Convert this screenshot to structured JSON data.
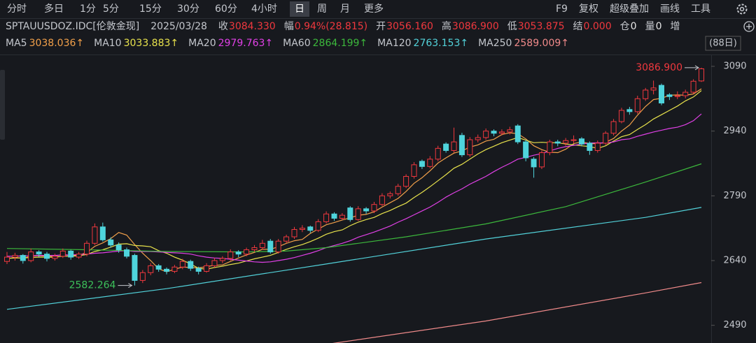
{
  "toolbar": {
    "periods": [
      "分时",
      "多日",
      "1分",
      "5分",
      "15分",
      "30分",
      "60分",
      "4小时",
      "日",
      "周",
      "月",
      "更多"
    ],
    "selected": "日",
    "tools": [
      "F9",
      "复权",
      "超级叠加",
      "画线",
      "工具"
    ]
  },
  "quote": {
    "symbol": "SPTAUUSDOZ.IDC[伦敦金现]",
    "date": "2025/03/28",
    "fields": [
      {
        "label": "收",
        "value": "3084.330",
        "color": "#f0383e"
      },
      {
        "label": "幅",
        "value": "0.94%(28.815)",
        "color": "#f0383e"
      },
      {
        "label": "开",
        "value": "3056.160",
        "color": "#f0383e"
      },
      {
        "label": "高",
        "value": "3086.900",
        "color": "#f0383e"
      },
      {
        "label": "低",
        "value": "3053.875",
        "color": "#f0383e"
      },
      {
        "label": "结",
        "value": "0.000",
        "color": "#f0383e"
      },
      {
        "label": "仓",
        "value": "0",
        "color": "#e6e6e6"
      },
      {
        "label": "量",
        "value": "0",
        "color": "#e6e6e6"
      },
      {
        "label": "增"
      }
    ]
  },
  "chart_data": {
    "type": "candlestick",
    "period_label": "(88日)",
    "up_color": "#f0383e",
    "down_color": "#4fd4dc",
    "ylim": [
      2449,
      3111
    ],
    "yticks": [
      3090,
      2940,
      2790,
      2640,
      2490
    ],
    "max_label": "3086.900",
    "min_label": "2582.264",
    "max_color": "#f0383e",
    "min_color": "#3cc05a",
    "open": [
      2638,
      2648,
      2652,
      2640,
      2660,
      2655,
      2645,
      2650,
      2662,
      2648,
      2655,
      2680,
      2718,
      2688,
      2676,
      2665,
      2652,
      2594,
      2612,
      2628,
      2620,
      2615,
      2625,
      2638,
      2622,
      2615,
      2628,
      2640,
      2645,
      2660,
      2655,
      2665,
      2670,
      2685,
      2660,
      2685,
      2695,
      2712,
      2718,
      2710,
      2730,
      2748,
      2738,
      2762,
      2735,
      2760,
      2755,
      2770,
      2790,
      2795,
      2812,
      2835,
      2870,
      2858,
      2875,
      2910,
      2895,
      2930,
      2885,
      2920,
      2925,
      2940,
      2935,
      2938,
      2952,
      2915,
      2875,
      2857,
      2890,
      2915,
      2912,
      2918,
      2922,
      2912,
      2895,
      2912,
      2935,
      2962,
      2990,
      2985,
      3015,
      3035,
      3046,
      3024,
      3020,
      3022,
      3030,
      3056.16
    ],
    "high": [
      2660,
      2658,
      2655,
      2668,
      2664,
      2660,
      2656,
      2668,
      2665,
      2660,
      2686,
      2726,
      2728,
      2694,
      2682,
      2670,
      2656,
      2618,
      2634,
      2632,
      2624,
      2630,
      2644,
      2642,
      2626,
      2634,
      2646,
      2650,
      2666,
      2664,
      2670,
      2676,
      2688,
      2690,
      2690,
      2700,
      2718,
      2722,
      2721,
      2736,
      2754,
      2752,
      2750,
      2766,
      2766,
      2764,
      2776,
      2796,
      2800,
      2818,
      2840,
      2868,
      2874,
      2882,
      2906,
      2914,
      2948,
      2936,
      2926,
      2932,
      2946,
      2944,
      2944,
      2950,
      2956,
      2920,
      2880,
      2895,
      2920,
      2920,
      2924,
      2930,
      2926,
      2916,
      2918,
      2940,
      2968,
      2994,
      2996,
      3022,
      3040,
      3057,
      3050,
      3028,
      3032,
      3036,
      3060,
      3086.9
    ],
    "low": [
      2632,
      2640,
      2633,
      2636,
      2648,
      2638,
      2640,
      2646,
      2642,
      2644,
      2650,
      2676,
      2684,
      2670,
      2658,
      2645,
      2582.264,
      2588,
      2606,
      2614,
      2608,
      2611,
      2620,
      2616,
      2608,
      2612,
      2624,
      2634,
      2640,
      2648,
      2650,
      2660,
      2665,
      2656,
      2656,
      2680,
      2690,
      2706,
      2704,
      2706,
      2726,
      2732,
      2734,
      2730,
      2732,
      2748,
      2750,
      2766,
      2784,
      2790,
      2808,
      2830,
      2852,
      2854,
      2870,
      2890,
      2890,
      2880,
      2880,
      2914,
      2920,
      2928,
      2930,
      2932,
      2910,
      2870,
      2832,
      2852,
      2884,
      2905,
      2906,
      2912,
      2905,
      2885,
      2890,
      2908,
      2930,
      2958,
      2978,
      2980,
      3010,
      3025,
      3000,
      3012,
      3014,
      3016,
      3026,
      3053.875
    ],
    "close": [
      2648,
      2652,
      2640,
      2660,
      2655,
      2645,
      2650,
      2662,
      2648,
      2655,
      2680,
      2718,
      2688,
      2676,
      2665,
      2650,
      2594,
      2612,
      2628,
      2620,
      2615,
      2625,
      2638,
      2622,
      2615,
      2628,
      2640,
      2645,
      2660,
      2655,
      2665,
      2670,
      2680,
      2660,
      2685,
      2695,
      2712,
      2715,
      2710,
      2730,
      2748,
      2738,
      2745,
      2735,
      2760,
      2755,
      2770,
      2790,
      2795,
      2812,
      2835,
      2862,
      2858,
      2875,
      2900,
      2895,
      2915,
      2885,
      2920,
      2925,
      2940,
      2935,
      2938,
      2943,
      2915,
      2878,
      2857,
      2890,
      2915,
      2912,
      2918,
      2920,
      2910,
      2895,
      2912,
      2935,
      2962,
      2988,
      2985,
      3015,
      3035,
      3040,
      3005,
      3020,
      3022,
      3030,
      3055.515,
      3084.33
    ],
    "series": [
      {
        "name": "MA5",
        "color": "#f2a04a",
        "value_label": "3038.036↑",
        "values": [
          2645,
          2647,
          2646,
          2650,
          2651,
          2650,
          2650,
          2654,
          2652,
          2652,
          2659,
          2673,
          2681,
          2691,
          2705,
          2699,
          2677,
          2657,
          2640,
          2621,
          2614,
          2620,
          2625,
          2624,
          2623,
          2626,
          2629,
          2630,
          2638,
          2646,
          2653,
          2659,
          2666,
          2666,
          2672,
          2680,
          2686,
          2689,
          2703,
          2713,
          2723,
          2728,
          2734,
          2739,
          2745,
          2747,
          2753,
          2764,
          2774,
          2784,
          2800,
          2819,
          2832,
          2848,
          2866,
          2878,
          2889,
          2894,
          2903,
          2908,
          2917,
          2921,
          2932,
          2936,
          2934,
          2922,
          2906,
          2897,
          2891,
          2890,
          2898,
          2911,
          2915,
          2911,
          2911,
          2914,
          2923,
          2940,
          2954,
          2977,
          2997,
          3013,
          3016,
          3023,
          3024,
          3023,
          3026,
          3038.036
        ]
      },
      {
        "name": "MA10",
        "color": "#e8e24c",
        "value_label": "3033.883↑",
        "values": [
          2645,
          2646,
          2646,
          2647,
          2648,
          2648,
          2648,
          2650,
          2650,
          2651,
          2654,
          2661,
          2665,
          2671,
          2678,
          2679,
          2675,
          2674,
          2672,
          2663,
          2657,
          2648,
          2641,
          2632,
          2622,
          2620,
          2624,
          2627,
          2631,
          2634,
          2639,
          2644,
          2648,
          2652,
          2659,
          2666,
          2672,
          2677,
          2684,
          2692,
          2701,
          2707,
          2711,
          2721,
          2729,
          2735,
          2740,
          2749,
          2756,
          2765,
          2773,
          2786,
          2798,
          2811,
          2825,
          2839,
          2854,
          2863,
          2875,
          2887,
          2897,
          2905,
          2913,
          2919,
          2925,
          2919,
          2913,
          2914,
          2913,
          2913,
          2910,
          2908,
          2906,
          2904,
          2900,
          2906,
          2917,
          2927,
          2932,
          2944,
          2955,
          2968,
          2978,
          2988,
          2998,
          3010,
          3019,
          3033.883
        ]
      },
      {
        "name": "MA20",
        "color": "#e040e6",
        "value_label": "2979.763↑",
        "values": [
          2650,
          2650,
          2651,
          2651,
          2652,
          2652,
          2652,
          2653,
          2653,
          2654,
          2655,
          2657,
          2658,
          2660,
          2662,
          2663,
          2661,
          2661,
          2661,
          2660,
          2659,
          2658,
          2657,
          2655,
          2651,
          2648,
          2646,
          2645,
          2643,
          2641,
          2639,
          2637,
          2636,
          2637,
          2640,
          2643,
          2647,
          2652,
          2657,
          2663,
          2670,
          2675,
          2680,
          2686,
          2694,
          2700,
          2706,
          2713,
          2720,
          2729,
          2737,
          2746,
          2755,
          2764,
          2775,
          2787,
          2797,
          2806,
          2817,
          2826,
          2835,
          2846,
          2856,
          2865,
          2875,
          2879,
          2884,
          2888,
          2894,
          2900,
          2904,
          2907,
          2910,
          2912,
          2913,
          2912,
          2915,
          2920,
          2922,
          2928,
          2933,
          2938,
          2942,
          2946,
          2949,
          2955,
          2964,
          2979.763
        ]
      },
      {
        "name": "MA60",
        "color": "#3cb83c",
        "value_label": "2864.199↑",
        "x": [
          0,
          10,
          20,
          30,
          35,
          40,
          50,
          60,
          70,
          80,
          87
        ],
        "values": [
          2668,
          2665,
          2661,
          2660,
          2662,
          2670,
          2695,
          2725,
          2765,
          2822,
          2864.199
        ]
      },
      {
        "name": "MA120",
        "color": "#52d2da",
        "value_label": "2763.153↑",
        "x": [
          0,
          20,
          40,
          60,
          80,
          87
        ],
        "values": [
          2527,
          2575,
          2632,
          2690,
          2740,
          2763.153
        ]
      },
      {
        "name": "MA250",
        "color": "#f08a8a",
        "value_label": "2589.009↑",
        "x": [
          40,
          60,
          80,
          87
        ],
        "values": [
          2446,
          2500,
          2565,
          2589.009
        ]
      }
    ]
  }
}
